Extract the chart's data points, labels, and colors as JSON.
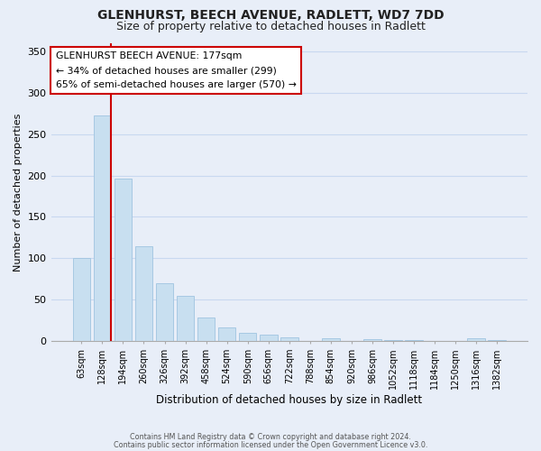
{
  "title": "GLENHURST, BEECH AVENUE, RADLETT, WD7 7DD",
  "subtitle": "Size of property relative to detached houses in Radlett",
  "xlabel": "Distribution of detached houses by size in Radlett",
  "ylabel": "Number of detached properties",
  "bar_labels": [
    "63sqm",
    "128sqm",
    "194sqm",
    "260sqm",
    "326sqm",
    "392sqm",
    "458sqm",
    "524sqm",
    "590sqm",
    "656sqm",
    "722sqm",
    "788sqm",
    "854sqm",
    "920sqm",
    "986sqm",
    "1052sqm",
    "1118sqm",
    "1184sqm",
    "1250sqm",
    "1316sqm",
    "1382sqm"
  ],
  "bar_values": [
    100,
    272,
    196,
    115,
    70,
    55,
    29,
    17,
    10,
    8,
    5,
    0,
    4,
    0,
    2,
    1,
    1,
    0,
    0,
    4,
    1
  ],
  "bar_color": "#c8dff0",
  "bar_edge_color": "#a0c4e0",
  "vline_color": "#cc0000",
  "annotation_title": "GLENHURST BEECH AVENUE: 177sqm",
  "annotation_line1": "← 34% of detached houses are smaller (299)",
  "annotation_line2": "65% of semi-detached houses are larger (570) →",
  "annotation_box_color": "#ffffff",
  "annotation_box_edge": "#cc0000",
  "ylim": [
    0,
    360
  ],
  "yticks": [
    0,
    50,
    100,
    150,
    200,
    250,
    300,
    350
  ],
  "footer1": "Contains HM Land Registry data © Crown copyright and database right 2024.",
  "footer2": "Contains public sector information licensed under the Open Government Licence v3.0.",
  "title_fontsize": 10,
  "subtitle_fontsize": 9,
  "bg_color": "#e8eef8",
  "grid_color": "#c8d8f0",
  "spine_color": "#aaaaaa"
}
